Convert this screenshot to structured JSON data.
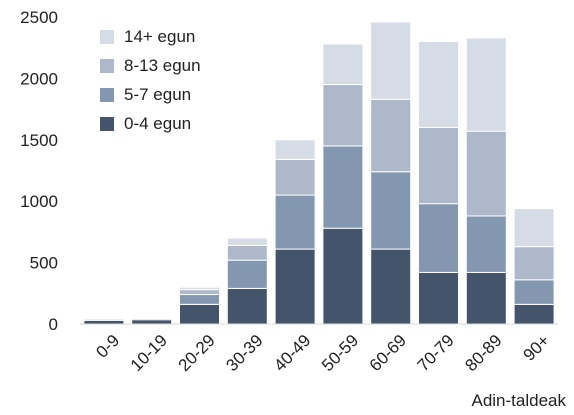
{
  "chart_data": {
    "type": "bar",
    "stacked": true,
    "xlabel": "Adin-taldeak",
    "ylabel": "",
    "ylim": [
      0,
      2500
    ],
    "yticks": [
      0,
      500,
      1000,
      1500,
      2000,
      2500
    ],
    "grid": false,
    "legend": "top-left",
    "categories": [
      "0-9",
      "10-19",
      "20-29",
      "30-39",
      "40-49",
      "50-59",
      "60-69",
      "70-79",
      "80-89",
      "90+"
    ],
    "series": [
      {
        "name": "0-4 egun",
        "color": "#44546a",
        "values": [
          30,
          35,
          160,
          290,
          610,
          780,
          610,
          420,
          420,
          160
        ]
      },
      {
        "name": "5-7 egun",
        "color": "#8497b0",
        "values": [
          10,
          10,
          80,
          230,
          440,
          670,
          630,
          560,
          460,
          200
        ]
      },
      {
        "name": "8-13 egun",
        "color": "#adb9ca",
        "values": [
          5,
          5,
          40,
          120,
          290,
          500,
          590,
          620,
          690,
          270
        ]
      },
      {
        "name": "14+ egun",
        "color": "#d6dce5",
        "values": [
          5,
          5,
          20,
          60,
          160,
          330,
          630,
          700,
          760,
          310
        ]
      }
    ]
  }
}
